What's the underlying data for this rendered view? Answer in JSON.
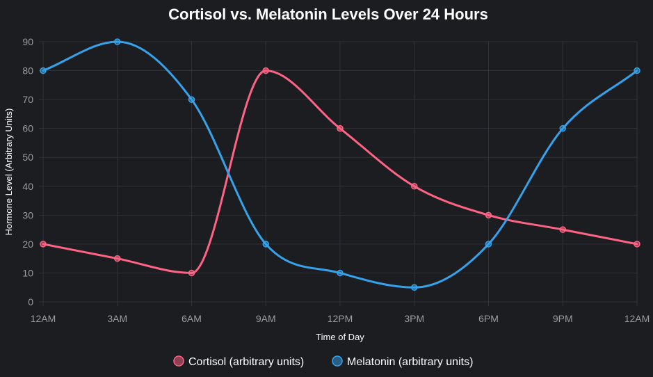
{
  "chart_data": {
    "type": "line",
    "title": "Cortisol vs. Melatonin Levels Over 24 Hours",
    "xlabel": "Time of Day",
    "ylabel": "Hormone Level (Arbitrary Units)",
    "categories": [
      "12AM",
      "3AM",
      "6AM",
      "9AM",
      "12PM",
      "3PM",
      "6PM",
      "9PM",
      "12AM"
    ],
    "ylim": [
      0,
      90
    ],
    "yticks": [
      0,
      10,
      20,
      30,
      40,
      50,
      60,
      70,
      80,
      90
    ],
    "grid": true,
    "legend_position": "bottom",
    "series": [
      {
        "name": "Cortisol (arbitrary units)",
        "color": "#ff6384",
        "values": [
          20,
          15,
          10,
          80,
          60,
          40,
          30,
          25,
          20
        ]
      },
      {
        "name": "Melatonin (arbitrary units)",
        "color": "#36a2eb",
        "values": [
          80,
          90,
          70,
          20,
          10,
          5,
          20,
          60,
          80
        ]
      }
    ]
  }
}
